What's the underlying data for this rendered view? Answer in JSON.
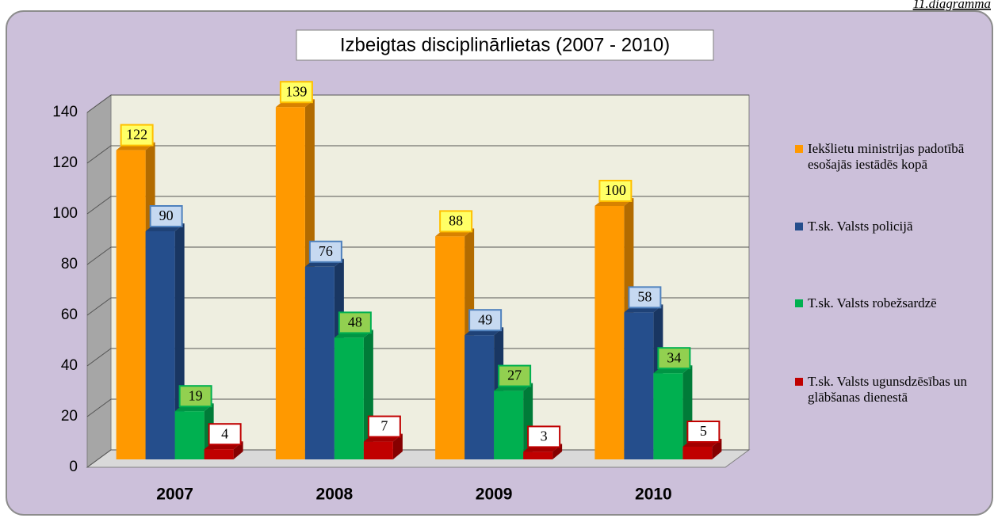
{
  "note": "11.diagramma",
  "chart_data": {
    "type": "bar3d",
    "title": "Izbeigtas disciplinārlietas (2007 - 2010)",
    "categories": [
      "2007",
      "2008",
      "2009",
      "2010"
    ],
    "series": [
      {
        "name": "Iekšlietu ministrijas padotībā esošajās iestādēs kopā",
        "color": "#ff9900",
        "values": [
          122,
          139,
          88,
          100
        ]
      },
      {
        "name": "T.sk. Valsts policijā",
        "color": "#254e8c",
        "values": [
          90,
          76,
          49,
          58
        ]
      },
      {
        "name": "T.sk. Valsts robežsardzē",
        "color": "#00b050",
        "values": [
          19,
          48,
          27,
          34
        ]
      },
      {
        "name": "T.sk. Valsts ugunsdzēsības un glābšanas dienestā",
        "color": "#c00000",
        "values": [
          4,
          7,
          3,
          5
        ]
      }
    ],
    "ylim": [
      0,
      140
    ],
    "yticks": [
      0,
      20,
      40,
      60,
      80,
      100,
      120,
      140
    ],
    "grid": true,
    "legend": "right"
  }
}
